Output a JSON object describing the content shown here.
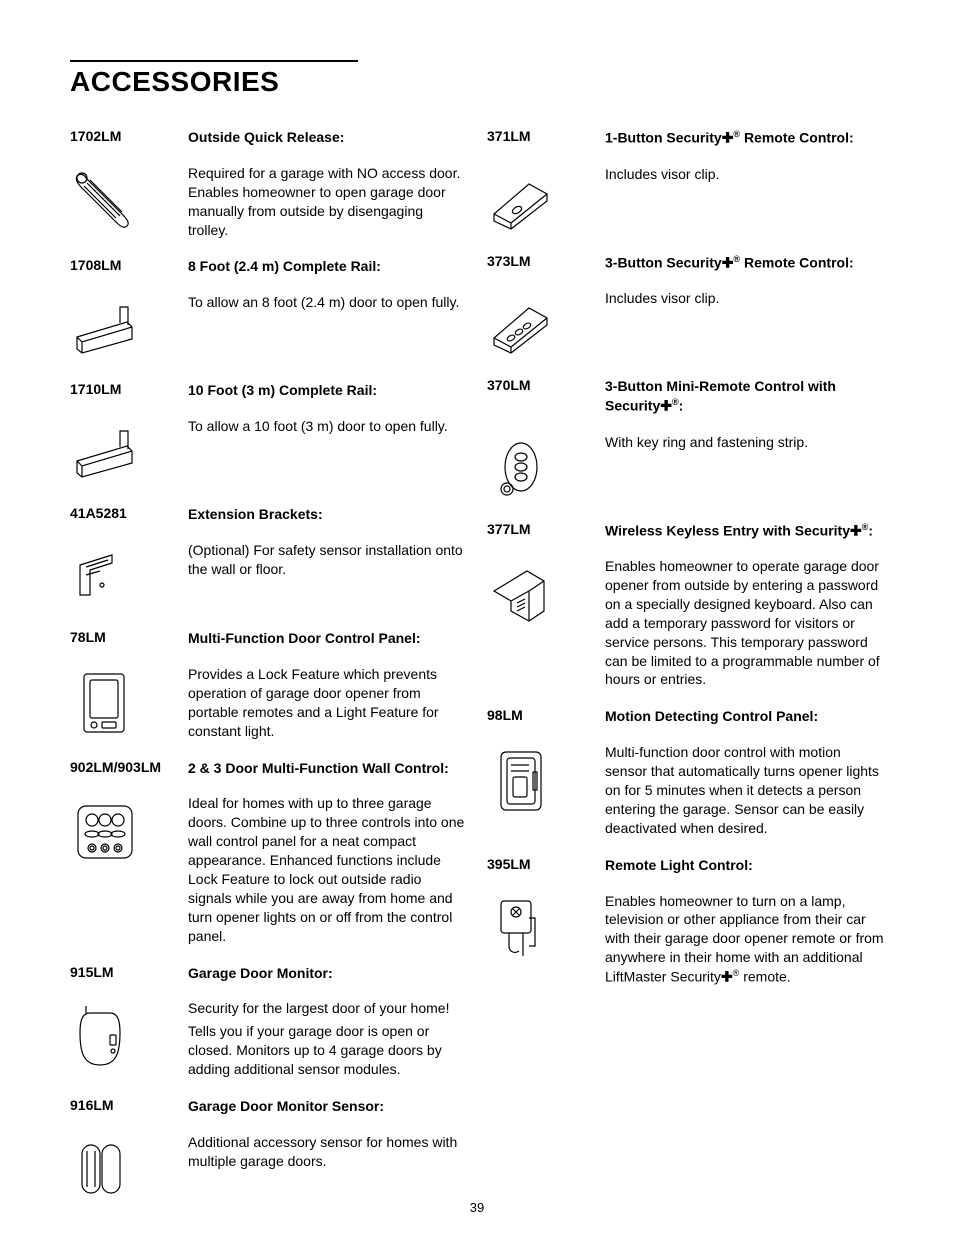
{
  "page_number": "39",
  "heading": "ACCESSORIES",
  "style": {
    "background_color": "#ffffff",
    "text_color": "#000000",
    "rule_color": "#000000",
    "title_fontsize": 28,
    "body_fontsize": 14,
    "model_fontweight": "bold"
  },
  "left": [
    {
      "model": "1702LM",
      "icon": "quick-release",
      "title": "Outside Quick Release:",
      "body": [
        "Required for a garage with NO access door. Enables homeowner to open garage door manually from outside by disengaging trolley."
      ]
    },
    {
      "model": "1708LM",
      "icon": "rail",
      "title": "8 Foot (2.4 m) Complete Rail:",
      "body": [
        "To allow an 8 foot (2.4 m) door to open fully."
      ]
    },
    {
      "model": "1710LM",
      "icon": "rail",
      "title": "10 Foot (3 m) Complete Rail:",
      "body": [
        "To allow a 10 foot (3 m) door to open fully."
      ]
    },
    {
      "model": "41A5281",
      "icon": "bracket",
      "title": "Extension Brackets:",
      "body": [
        "(Optional) For safety sensor installation onto the wall or floor."
      ]
    },
    {
      "model": "78LM",
      "icon": "panel",
      "title": "Multi-Function Door Control Panel:",
      "body": [
        "Provides a Lock Feature which prevents operation of garage door opener from portable remotes and a Light Feature for constant light."
      ]
    },
    {
      "model": "902LM/903LM",
      "icon": "wall-control",
      "title": "2 & 3 Door Multi-Function Wall Control:",
      "body": [
        "Ideal for homes with up to three garage doors. Combine up to three controls into one wall control panel for a neat compact appearance. Enhanced functions include Lock Feature to lock out outside radio signals while you are away from home and turn opener lights on or off from the control panel."
      ]
    },
    {
      "model": "915LM",
      "icon": "monitor",
      "title": "Garage Door Monitor:",
      "body": [
        "Security for the largest door of your home!",
        "Tells you if your garage door is open or closed. Monitors up to 4 garage doors by adding additional sensor modules."
      ]
    },
    {
      "model": "916LM",
      "icon": "sensor",
      "title": "Garage Door Monitor Sensor:",
      "body": [
        "Additional accessory sensor for homes with multiple garage doors."
      ]
    }
  ],
  "right": [
    {
      "model": "371LM",
      "icon": "remote1",
      "title_html": "1-Button Security✚<sup>®</sup> Remote Control:",
      "body": [
        "Includes visor clip."
      ]
    },
    {
      "model": "373LM",
      "icon": "remote3",
      "title_html": "3-Button Security✚<sup>®</sup> Remote Control:",
      "body": [
        "Includes visor clip."
      ]
    },
    {
      "model": "370LM",
      "icon": "mini-remote",
      "title_html": "3-Button Mini-Remote Control with Security✚<sup>®</sup>:",
      "body": [
        "With key ring and fastening strip."
      ]
    },
    {
      "model": "377LM",
      "icon": "keyless",
      "title_html": "Wireless Keyless Entry with Security✚<sup>®</sup>:",
      "body": [
        "Enables homeowner to operate garage door opener from outside by entering a password on a specially designed keyboard. Also can add a temporary password for visitors or service persons. This temporary password can be limited to a programmable number of hours or entries."
      ]
    },
    {
      "model": "98LM",
      "icon": "motion-panel",
      "title": "Motion Detecting Control Panel:",
      "body": [
        "Multi-function door control with motion sensor that automatically turns opener lights on for 5 minutes when it detects a person entering the garage. Sensor can be easily deactivated when desired."
      ]
    },
    {
      "model": "395LM",
      "icon": "light-control",
      "title": "Remote Light Control:",
      "body_html": [
        "Enables homeowner to turn on a lamp, television or other appliance from their car with their garage door opener remote or from anywhere in their home with an additional LiftMaster Security✚<sup>®</sup> remote."
      ]
    }
  ]
}
